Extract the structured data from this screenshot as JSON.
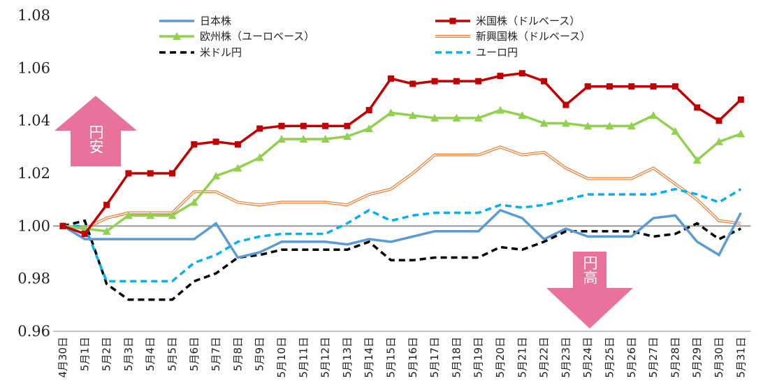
{
  "chart_data": {
    "type": "line",
    "title": "",
    "xlabel": "",
    "ylabel": "",
    "ylim": [
      0.96,
      1.08
    ],
    "yticks": [
      "0.96",
      "0.98",
      "1.00",
      "1.02",
      "1.04",
      "1.06",
      "1.08"
    ],
    "categories": [
      "4月30日",
      "5月1日",
      "5月2日",
      "5月3日",
      "5月4日",
      "5月5日",
      "5月6日",
      "5月7日",
      "5月8日",
      "5月9日",
      "5月10日",
      "5月11日",
      "5月12日",
      "5月13日",
      "5月14日",
      "5月15日",
      "5月16日",
      "5月17日",
      "5月18日",
      "5月19日",
      "5月20日",
      "5月21日",
      "5月22日",
      "5月23日",
      "5月24日",
      "5月25日",
      "5月26日",
      "5月27日",
      "5月28日",
      "5月29日",
      "5月30日",
      "5月31日"
    ],
    "reference_line": 1.0,
    "grid": false,
    "legend_position": "top",
    "series": [
      {
        "name": "日本株",
        "color": "#5B9BD5",
        "style": "solid",
        "values": [
          1.0,
          0.995,
          0.995,
          0.995,
          0.995,
          0.995,
          0.995,
          1.001,
          0.988,
          0.99,
          0.994,
          0.994,
          0.994,
          0.993,
          0.995,
          0.994,
          0.996,
          0.998,
          0.998,
          0.998,
          1.006,
          1.003,
          0.995,
          0.999,
          0.996,
          0.996,
          0.996,
          1.003,
          1.004,
          0.994,
          0.989,
          1.005
        ]
      },
      {
        "name": "米国株（ドルベース）",
        "color": "#C00000",
        "style": "solid",
        "marker": "square",
        "values": [
          1.0,
          0.997,
          1.008,
          1.02,
          1.02,
          1.02,
          1.031,
          1.032,
          1.031,
          1.037,
          1.038,
          1.038,
          1.038,
          1.038,
          1.044,
          1.056,
          1.054,
          1.055,
          1.055,
          1.055,
          1.057,
          1.058,
          1.055,
          1.046,
          1.053,
          1.053,
          1.053,
          1.053,
          1.053,
          1.045,
          1.04,
          1.048
        ]
      },
      {
        "name": "欧州株（ユーロベース）",
        "color": "#92D050",
        "style": "solid",
        "marker": "triangle",
        "values": [
          1.0,
          0.999,
          0.998,
          1.004,
          1.004,
          1.004,
          1.009,
          1.019,
          1.022,
          1.026,
          1.033,
          1.033,
          1.033,
          1.034,
          1.037,
          1.043,
          1.042,
          1.041,
          1.041,
          1.041,
          1.044,
          1.042,
          1.039,
          1.039,
          1.038,
          1.038,
          1.038,
          1.042,
          1.036,
          1.025,
          1.032,
          1.035
        ]
      },
      {
        "name": "新興国株（ドルベース）",
        "color": "#ED7D31",
        "style": "double",
        "values": [
          1.0,
          0.999,
          1.003,
          1.005,
          1.005,
          1.005,
          1.013,
          1.013,
          1.009,
          1.008,
          1.009,
          1.009,
          1.009,
          1.008,
          1.012,
          1.014,
          1.02,
          1.027,
          1.027,
          1.027,
          1.03,
          1.027,
          1.028,
          1.022,
          1.018,
          1.018,
          1.018,
          1.022,
          1.016,
          1.01,
          1.002,
          1.001
        ]
      },
      {
        "name": "米ドル円",
        "color": "#000000",
        "style": "dashed",
        "values": [
          1.0,
          1.002,
          0.978,
          0.972,
          0.972,
          0.972,
          0.979,
          0.982,
          0.988,
          0.989,
          0.991,
          0.991,
          0.991,
          0.991,
          0.994,
          0.987,
          0.987,
          0.988,
          0.988,
          0.988,
          0.992,
          0.991,
          0.994,
          0.998,
          0.998,
          0.998,
          0.998,
          0.996,
          0.997,
          1.001,
          0.995,
          0.999
        ]
      },
      {
        "name": "ユーロ円",
        "color": "#00B0F0",
        "style": "dashed",
        "values": [
          1.0,
          1.0,
          0.979,
          0.979,
          0.979,
          0.979,
          0.986,
          0.989,
          0.994,
          0.996,
          0.997,
          0.997,
          0.997,
          1.001,
          1.006,
          1.002,
          1.004,
          1.005,
          1.005,
          1.005,
          1.008,
          1.007,
          1.008,
          1.01,
          1.012,
          1.012,
          1.012,
          1.012,
          1.014,
          1.012,
          1.009,
          1.014
        ]
      }
    ],
    "annotations": [
      {
        "text": "円安",
        "color": "#E8729C",
        "direction": "up"
      },
      {
        "text": "円高",
        "color": "#E8729C",
        "direction": "down"
      }
    ]
  }
}
